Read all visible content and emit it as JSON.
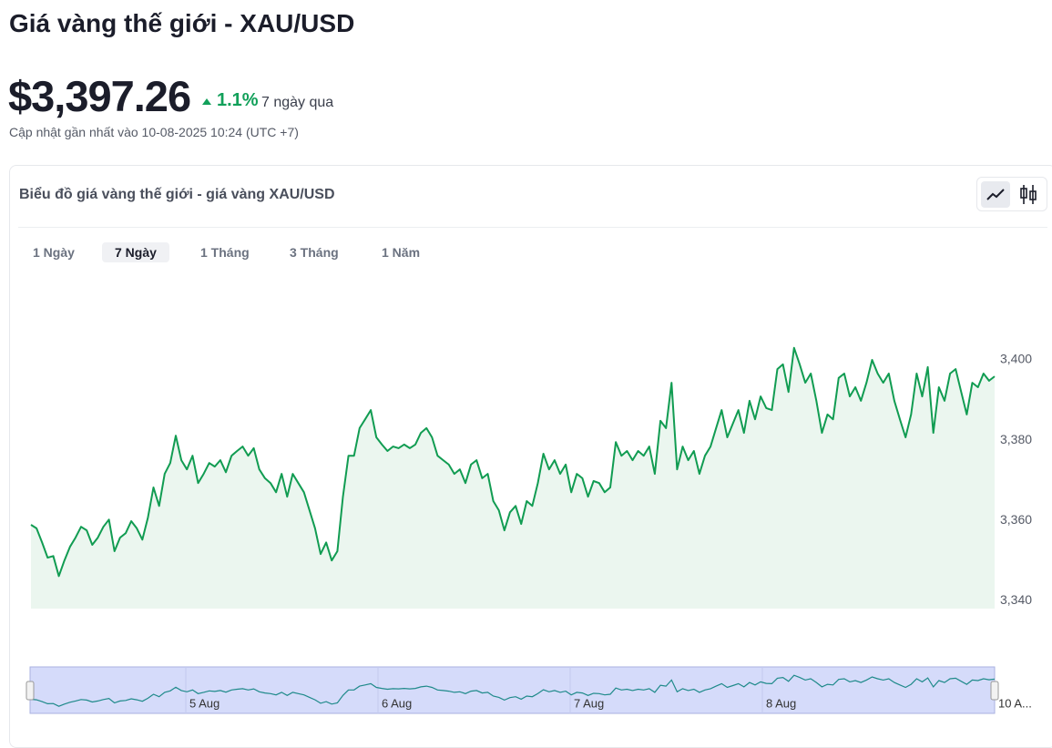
{
  "header": {
    "title": "Giá vàng thế giới - XAU/USD",
    "price": "$3,397.26",
    "change": "1.1%",
    "change_period": "7 ngày qua",
    "updated": "Cập nhật gần nhất vào 10-08-2025 10:24 (UTC +7)"
  },
  "card": {
    "title": "Biểu đồ giá vàng thế giới - giá vàng XAU/USD",
    "tabs": [
      "1 Ngày",
      "7 Ngày",
      "1 Tháng",
      "3 Tháng",
      "1 Năm"
    ],
    "active_tab": 1
  },
  "chart_data": {
    "type": "area",
    "color": "#119c52",
    "values": [
      3358.9,
      3358.0,
      3354.5,
      3350.7,
      3351.1,
      3346.1,
      3350.0,
      3353.4,
      3355.7,
      3358.4,
      3357.5,
      3353.9,
      3355.7,
      3358.4,
      3360.2,
      3352.3,
      3355.7,
      3356.8,
      3359.8,
      3358.0,
      3355.2,
      3360.7,
      3368.2,
      3363.6,
      3371.6,
      3374.3,
      3381.1,
      3375.0,
      3372.7,
      3376.1,
      3369.3,
      3371.6,
      3374.3,
      3373.4,
      3375.0,
      3372.0,
      3376.1,
      3377.3,
      3378.4,
      3376.1,
      3378.0,
      3372.7,
      3370.5,
      3369.3,
      3367.0,
      3371.6,
      3365.9,
      3371.6,
      3369.3,
      3367.0,
      3362.5,
      3358.0,
      3351.6,
      3354.5,
      3350.0,
      3352.3,
      3365.9,
      3376.1,
      3376.1,
      3383.0,
      3385.2,
      3387.5,
      3380.7,
      3378.9,
      3377.3,
      3378.4,
      3378.0,
      3378.9,
      3378.0,
      3378.9,
      3381.8,
      3383.0,
      3380.7,
      3376.1,
      3375.0,
      3373.9,
      3371.6,
      3372.7,
      3369.3,
      3373.9,
      3375.0,
      3370.5,
      3371.6,
      3364.8,
      3362.5,
      3357.5,
      3362.0,
      3363.6,
      3359.1,
      3364.8,
      3363.6,
      3369.3,
      3376.6,
      3372.7,
      3375.0,
      3371.6,
      3373.9,
      3367.0,
      3371.6,
      3370.5,
      3365.9,
      3369.8,
      3369.3,
      3367.0,
      3368.2,
      3379.5,
      3376.1,
      3377.3,
      3375.0,
      3377.3,
      3376.1,
      3378.4,
      3371.6,
      3384.8,
      3383.0,
      3394.3,
      3372.7,
      3378.4,
      3375.0,
      3377.3,
      3371.6,
      3376.1,
      3378.4,
      3383.0,
      3387.5,
      3380.7,
      3384.1,
      3387.5,
      3381.8,
      3389.8,
      3385.2,
      3390.9,
      3388.0,
      3387.5,
      3397.7,
      3398.9,
      3392.0,
      3403.0,
      3398.9,
      3394.3,
      3396.6,
      3389.8,
      3381.8,
      3386.4,
      3385.2,
      3395.5,
      3396.6,
      3390.9,
      3393.2,
      3389.8,
      3394.3,
      3400.0,
      3396.6,
      3394.3,
      3396.6,
      3389.8,
      3385.2,
      3380.7,
      3386.4,
      3396.6,
      3390.9,
      3398.2,
      3381.8,
      3393.2,
      3389.8,
      3396.6,
      3397.7,
      3392.0,
      3386.4,
      3394.3,
      3393.2,
      3396.6,
      3394.8,
      3395.9
    ],
    "ylim": [
      3338,
      3405
    ],
    "yticks": [
      {
        "value": 3340,
        "label": "3,340"
      },
      {
        "value": 3360,
        "label": "3,360"
      },
      {
        "value": 3380,
        "label": "3,380"
      },
      {
        "value": 3400,
        "label": "3,400"
      }
    ],
    "navigator_labels": [
      "5 Aug",
      "6 Aug",
      "7 Aug",
      "8 Aug",
      "10 A..."
    ]
  }
}
